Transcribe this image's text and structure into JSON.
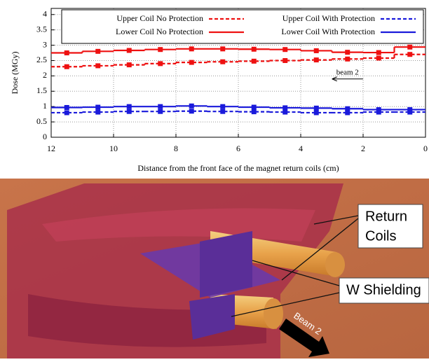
{
  "chart_data": {
    "type": "step",
    "ylabel": "Dose (MGy)",
    "xlabel": "Distance from the front face of the magnet return coils (cm)",
    "x": [
      11.5,
      10.5,
      9.5,
      8.5,
      7.5,
      6.5,
      5.5,
      4.5,
      3.5,
      2.5,
      1.5,
      0.5
    ],
    "series": [
      {
        "name": "Upper Coil No Protection",
        "color": "#ee1111",
        "dashed": true,
        "values": [
          2.3,
          2.33,
          2.36,
          2.4,
          2.44,
          2.46,
          2.48,
          2.5,
          2.52,
          2.55,
          2.58,
          2.7
        ]
      },
      {
        "name": "Upper Coil With Protection",
        "color": "#1a1adb",
        "dashed": true,
        "values": [
          0.8,
          0.82,
          0.84,
          0.84,
          0.85,
          0.84,
          0.83,
          0.82,
          0.8,
          0.8,
          0.82,
          0.82
        ]
      },
      {
        "name": "Lower Coil No Protection",
        "color": "#ee1111",
        "dashed": false,
        "values": [
          2.75,
          2.8,
          2.83,
          2.86,
          2.88,
          2.88,
          2.87,
          2.86,
          2.82,
          2.77,
          2.76,
          2.94
        ]
      },
      {
        "name": "Lower Coil With Protection",
        "color": "#1a1adb",
        "dashed": false,
        "values": [
          0.97,
          0.98,
          1.0,
          1.0,
          1.02,
          1.0,
          0.98,
          0.96,
          0.95,
          0.93,
          0.9,
          0.9
        ]
      }
    ],
    "xlim": [
      12,
      0
    ],
    "xticks": [
      12,
      10,
      8,
      6,
      4,
      2,
      0
    ],
    "ylim": [
      0,
      4.2
    ],
    "yticks": [
      0,
      0.5,
      1,
      1.5,
      2,
      2.5,
      3,
      3.5,
      4
    ],
    "grid": true,
    "legend": "top",
    "annotation": {
      "text": "beam 2",
      "x": 2.5,
      "y": 1.9
    }
  },
  "illustration": {
    "return_coils": [
      "Return",
      "Coils"
    ],
    "w_shielding": "W Shielding",
    "beam": "Beam 2"
  }
}
